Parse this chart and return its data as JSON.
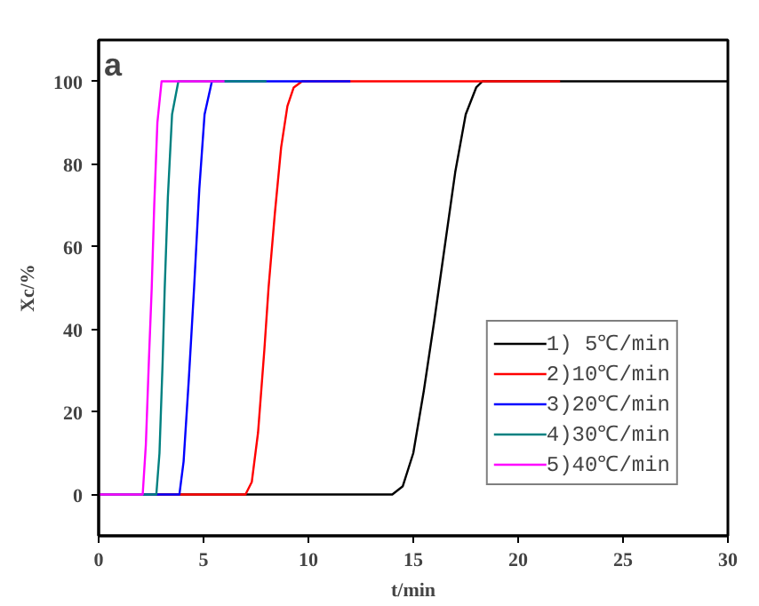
{
  "chart_data": {
    "type": "line",
    "xlabel": "t/min",
    "ylabel": "Xc/%",
    "annotations": [
      "a"
    ],
    "xlim": [
      0,
      30
    ],
    "ylim": [
      -10,
      110
    ],
    "xticks": [
      0,
      5,
      10,
      15,
      20,
      25,
      30
    ],
    "yticks": [
      0,
      20,
      40,
      60,
      80,
      100
    ],
    "grid": false,
    "legend": "bottom right",
    "marker": "none",
    "line_style": "solid",
    "series": [
      {
        "name": "1) 5℃/min",
        "color": "#000000",
        "x": [
          0,
          14,
          14.5,
          15,
          15.5,
          16,
          16.5,
          17,
          17.5,
          18,
          18.3,
          30
        ],
        "values": [
          0,
          0,
          2,
          10,
          25,
          42,
          60,
          78,
          92,
          98.5,
          100,
          100
        ]
      },
      {
        "name": "2)10℃/min",
        "color": "#ff0000",
        "x": [
          0,
          7.0,
          7.3,
          7.6,
          7.9,
          8.1,
          8.4,
          8.7,
          9.0,
          9.3,
          9.7,
          22
        ],
        "values": [
          0,
          0,
          3,
          15,
          35,
          50,
          68,
          84,
          94,
          98.5,
          100,
          100
        ]
      },
      {
        "name": "3)20℃/min",
        "color": "#0000ff",
        "x": [
          0,
          3.85,
          4.05,
          4.3,
          4.55,
          4.8,
          5.05,
          5.4,
          12
        ],
        "values": [
          0,
          0,
          8,
          28,
          50,
          74,
          92,
          100,
          100
        ]
      },
      {
        "name": "4)30℃/min",
        "color": "#008080",
        "x": [
          0,
          2.75,
          2.9,
          3.05,
          3.15,
          3.3,
          3.5,
          3.8,
          8
        ],
        "values": [
          0,
          0,
          10,
          32,
          50,
          72,
          92,
          100,
          100
        ]
      },
      {
        "name": "5)40℃/min",
        "color": "#ff00ff",
        "x": [
          0,
          2.1,
          2.25,
          2.4,
          2.53,
          2.65,
          2.8,
          3.0,
          6
        ],
        "values": [
          0,
          0,
          12,
          33,
          50,
          70,
          90,
          100,
          100
        ]
      }
    ]
  }
}
